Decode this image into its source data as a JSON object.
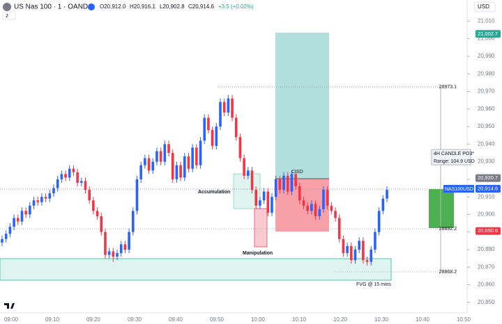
{
  "header": {
    "symbol": "US Nas 100 · 1 · OANDA",
    "open": "O20,912.0",
    "high": "H20,916.1",
    "low": "L20,902.8",
    "close": "C20,914.6",
    "change": "+3.5 (+0.02%)",
    "currency": "USD",
    "indicators": "2"
  },
  "chart_data": {
    "type": "candlestick",
    "up_color": "#2962ff",
    "down_color": "#f23645",
    "open": [
      20884,
      20886,
      20889,
      20893,
      20898,
      20896,
      20902,
      20900,
      20905,
      20908,
      20907,
      20910,
      20909,
      20912,
      20915,
      20920,
      20923,
      20921,
      20926,
      20924,
      20918,
      20919,
      20914,
      20908,
      20902,
      20899,
      20890,
      20877,
      20879,
      20876,
      20878,
      20883,
      20880,
      20890,
      20902,
      20920,
      20928,
      20932,
      20925,
      20930,
      20936,
      20930,
      20940,
      20935,
      20920,
      20928,
      20921,
      20933,
      20926,
      20938,
      20928,
      20942,
      20955,
      20948,
      20939,
      20950,
      20964,
      20958,
      20966,
      20955,
      20944,
      20932,
      20922,
      20925,
      20914,
      20905,
      20908,
      20913,
      20901,
      20910,
      20920,
      20914,
      20922,
      20913,
      20923,
      20916,
      20908,
      20905,
      20902,
      20906,
      20899,
      20903,
      20914,
      20905,
      20902,
      20898,
      20886,
      20878,
      20882,
      20874,
      20880,
      20885,
      20874,
      20873,
      20880,
      20890,
      20902,
      20909
    ],
    "high": [
      20888,
      20891,
      20895,
      20900,
      20900,
      20904,
      20904,
      20907,
      20910,
      20910,
      20912,
      20912,
      20914,
      20917,
      20922,
      20925,
      20925,
      20928,
      20928,
      20926,
      20921,
      20921,
      20916,
      20910,
      20904,
      20901,
      20892,
      20881,
      20881,
      20880,
      20885,
      20885,
      20892,
      20904,
      20922,
      20930,
      20934,
      20934,
      20932,
      20938,
      20938,
      20942,
      20942,
      20937,
      20930,
      20930,
      20935,
      20935,
      20940,
      20940,
      20944,
      20957,
      20957,
      20950,
      20952,
      20966,
      20966,
      20968,
      20968,
      20957,
      20946,
      20934,
      20927,
      20927,
      20916,
      20910,
      20915,
      20915,
      20912,
      20922,
      20922,
      20924,
      20924,
      20925,
      20925,
      20918,
      20910,
      20907,
      20908,
      20908,
      20905,
      20916,
      20916,
      20907,
      20904,
      20900,
      20888,
      20884,
      20884,
      20882,
      20887,
      20887,
      20876,
      20882,
      20892,
      20904,
      20911,
      20916
    ],
    "low": [
      20882,
      20884,
      20887,
      20891,
      20894,
      20894,
      20898,
      20898,
      20903,
      20905,
      20905,
      20907,
      20907,
      20910,
      20913,
      20918,
      20919,
      20919,
      20922,
      20916,
      20916,
      20912,
      20906,
      20900,
      20897,
      20888,
      20875,
      20875,
      20873,
      20874,
      20876,
      20878,
      20878,
      20888,
      20900,
      20918,
      20926,
      20923,
      20923,
      20928,
      20928,
      20928,
      20933,
      20918,
      20918,
      20919,
      20919,
      20924,
      20924,
      20926,
      20926,
      20940,
      20946,
      20937,
      20937,
      20948,
      20956,
      20956,
      20953,
      20942,
      20930,
      20920,
      20920,
      20912,
      20903,
      20903,
      20906,
      20899,
      20899,
      20908,
      20912,
      20912,
      20911,
      20911,
      20914,
      20906,
      20903,
      20900,
      20900,
      20897,
      20897,
      20901,
      20903,
      20900,
      20896,
      20884,
      20876,
      20876,
      20872,
      20872,
      20878,
      20872,
      20871,
      20871,
      20878,
      20888,
      20900,
      20907
    ],
    "close": [
      20886,
      20889,
      20893,
      20898,
      20896,
      20902,
      20900,
      20905,
      20908,
      20907,
      20910,
      20909,
      20912,
      20915,
      20920,
      20923,
      20921,
      20926,
      20924,
      20918,
      20919,
      20914,
      20908,
      20902,
      20899,
      20890,
      20877,
      20879,
      20876,
      20878,
      20883,
      20880,
      20890,
      20902,
      20920,
      20928,
      20932,
      20925,
      20930,
      20936,
      20930,
      20940,
      20935,
      20920,
      20928,
      20921,
      20933,
      20926,
      20938,
      20928,
      20942,
      20955,
      20948,
      20939,
      20950,
      20964,
      20958,
      20966,
      20955,
      20944,
      20932,
      20922,
      20925,
      20914,
      20905,
      20908,
      20913,
      20901,
      20910,
      20920,
      20914,
      20922,
      20913,
      20923,
      20916,
      20908,
      20905,
      20902,
      20906,
      20899,
      20903,
      20914,
      20905,
      20902,
      20898,
      20886,
      20878,
      20882,
      20874,
      20880,
      20885,
      20874,
      20873,
      20880,
      20890,
      20902,
      20909,
      20914
    ],
    "ylim": [
      20844,
      21022
    ],
    "yticks": [
      {
        "value": 20850,
        "label": "20,850"
      },
      {
        "value": 20860,
        "label": "20,860"
      },
      {
        "value": 20870,
        "label": "20,870"
      },
      {
        "value": 20880,
        "label": "20,880"
      },
      {
        "value": 20890,
        "label": "20,890"
      },
      {
        "value": 20900,
        "label": "20,900"
      },
      {
        "value": 20910,
        "label": "20,910"
      },
      {
        "value": 20920,
        "label": "20,920"
      },
      {
        "value": 20930,
        "label": "20,930"
      },
      {
        "value": 20940,
        "label": "20,940"
      },
      {
        "value": 20950,
        "label": "20,950"
      },
      {
        "value": 20960,
        "label": "20,960"
      },
      {
        "value": 20970,
        "label": "20,970"
      },
      {
        "value": 20980,
        "label": "20,980"
      },
      {
        "value": 20990,
        "label": "20,990"
      },
      {
        "value": 21000,
        "label": "21,000"
      },
      {
        "value": 21010,
        "label": "21,010"
      }
    ],
    "x_labels": [
      "09:00",
      "09:10",
      "09:20",
      "09:30",
      "09:40",
      "09:50",
      "10:00",
      "10:10",
      "10:20",
      "10:30",
      "10:40",
      "10:50"
    ],
    "price_tags": [
      {
        "value": 21002.7,
        "label": "21,002.7",
        "color": "#22ab94"
      },
      {
        "value": 20920.7,
        "label": "20,920.7",
        "color": "#787b86"
      },
      {
        "value": 20914.6,
        "label": "20,914.6",
        "color": "#2962ff"
      },
      {
        "value": 20890.6,
        "label": "20,890.6",
        "color": "#f23645"
      }
    ],
    "annotations": [
      "Accumulation",
      "Manipulation",
      "CISD",
      "FVG @ 15 mins",
      "4H CANDLE PO3*",
      "Range: 104.9 USD",
      "NAS100USD",
      "28973.1",
      "28892.2",
      "28868.2"
    ]
  }
}
